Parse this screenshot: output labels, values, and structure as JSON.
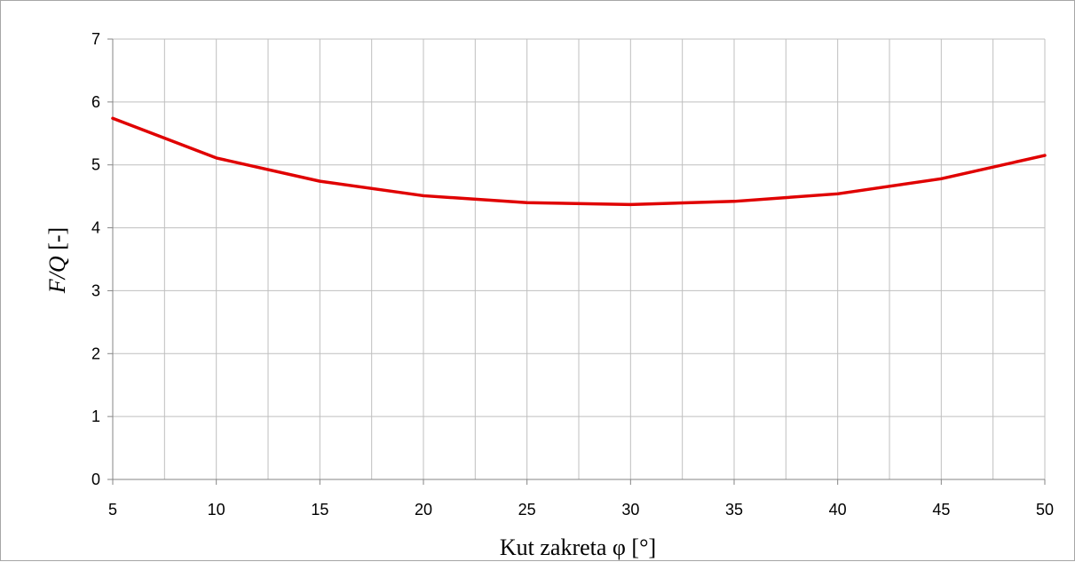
{
  "chart_data": {
    "type": "line",
    "title": "",
    "xlabel": "Kut zakreta φ [°]",
    "ylabel": {
      "italic": "F/Q",
      "unit": " [-]"
    },
    "x": [
      5,
      10,
      15,
      20,
      25,
      30,
      35,
      40,
      45,
      50
    ],
    "xlim": [
      5,
      50
    ],
    "ylim": [
      0,
      7
    ],
    "x_ticks": [
      5,
      10,
      15,
      20,
      25,
      30,
      35,
      40,
      45,
      50
    ],
    "x_minor_gridlines": [
      7.5,
      12.5,
      17.5,
      22.5,
      27.5,
      32.5,
      37.5,
      42.5,
      47.5
    ],
    "y_ticks": [
      0,
      1,
      2,
      3,
      4,
      5,
      6,
      7
    ],
    "grid": true,
    "legend": "none",
    "series": [
      {
        "color": "#e00000",
        "values": [
          5.74,
          5.11,
          4.74,
          4.51,
          4.4,
          4.37,
          4.42,
          4.54,
          4.78,
          5.15
        ]
      }
    ]
  }
}
